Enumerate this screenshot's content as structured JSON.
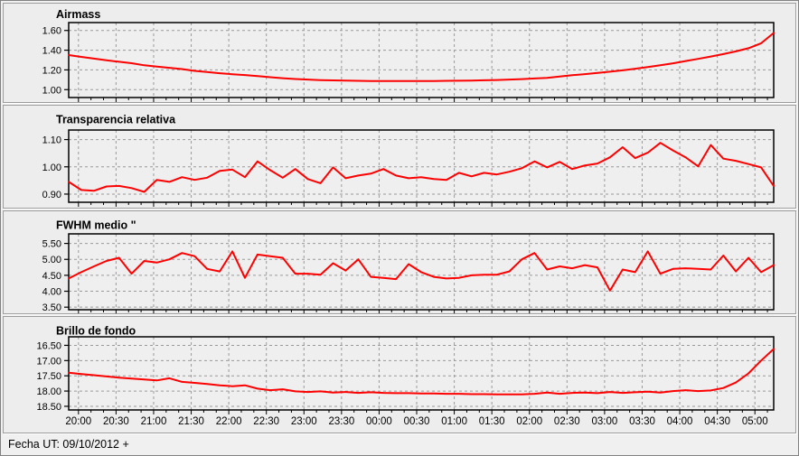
{
  "page": {
    "footer_text": "Fecha UT: 09/10/2012 +"
  },
  "colors": {
    "series": "#ff0000",
    "title_text": "#ff0000",
    "grid": "#9a9a9a",
    "axis": "#000000",
    "tick_text": "#000000",
    "page_bg": "#f0f0f0",
    "panel_bg": "#ededed",
    "plot_bg": "#efefef",
    "panel_border": "#9c9c9c"
  },
  "x_axis": {
    "xlim": [
      19.87,
      29.25
    ],
    "major_tick_labels": [
      "20:00",
      "20:30",
      "21:00",
      "21:30",
      "22:00",
      "22:30",
      "23:00",
      "23:30",
      "00:00",
      "00:30",
      "01:00",
      "01:30",
      "02:00",
      "02:30",
      "03:00",
      "03:30",
      "04:00",
      "04:30",
      "05:00"
    ],
    "minor_tick_minutes": 10
  },
  "chart_data": [
    {
      "type": "line",
      "title": "Airmass",
      "yticks": [
        1.0,
        1.2,
        1.4,
        1.6
      ],
      "ylim": [
        0.92,
        1.68
      ],
      "grid": true,
      "legend": false,
      "values": [
        1.35,
        1.332,
        1.315,
        1.298,
        1.283,
        1.268,
        1.247,
        1.234,
        1.221,
        1.208,
        1.19,
        1.178,
        1.166,
        1.156,
        1.148,
        1.138,
        1.126,
        1.116,
        1.108,
        1.102,
        1.097,
        1.094,
        1.091,
        1.089,
        1.088,
        1.088,
        1.087,
        1.087,
        1.087,
        1.088,
        1.089,
        1.09,
        1.092,
        1.095,
        1.098,
        1.102,
        1.107,
        1.113,
        1.12,
        1.133,
        1.146,
        1.157,
        1.17,
        1.182,
        1.196,
        1.212,
        1.229,
        1.247,
        1.267,
        1.29,
        1.312,
        1.336,
        1.36,
        1.388,
        1.42,
        1.47,
        1.575
      ]
    },
    {
      "type": "line",
      "title": "Transparencia relativa",
      "yticks": [
        0.9,
        1.0,
        1.1
      ],
      "ylim": [
        0.87,
        1.135
      ],
      "grid": true,
      "legend": false,
      "values": [
        0.945,
        0.915,
        0.912,
        0.928,
        0.93,
        0.922,
        0.908,
        0.952,
        0.945,
        0.962,
        0.952,
        0.96,
        0.985,
        0.99,
        0.962,
        1.02,
        0.988,
        0.96,
        0.992,
        0.955,
        0.94,
        0.998,
        0.958,
        0.968,
        0.975,
        0.992,
        0.968,
        0.958,
        0.962,
        0.955,
        0.952,
        0.978,
        0.965,
        0.978,
        0.972,
        0.982,
        0.995,
        1.02,
        0.998,
        1.018,
        0.992,
        1.005,
        1.012,
        1.035,
        1.072,
        1.032,
        1.052,
        1.088,
        1.06,
        1.035,
        1.002,
        1.08,
        1.03,
        1.022,
        1.01,
        0.998,
        0.93
      ]
    },
    {
      "type": "line",
      "title": "FWHM medio \"",
      "yticks": [
        3.5,
        4.0,
        4.5,
        5.0,
        5.5
      ],
      "ylim": [
        3.42,
        5.8
      ],
      "grid": true,
      "legend": false,
      "values": [
        4.4,
        4.6,
        4.78,
        4.95,
        5.05,
        4.55,
        4.95,
        4.9,
        5.0,
        5.2,
        5.1,
        4.7,
        4.62,
        5.25,
        4.42,
        5.15,
        5.1,
        5.05,
        4.55,
        4.55,
        4.52,
        4.88,
        4.65,
        5.0,
        4.45,
        4.42,
        4.38,
        4.85,
        4.6,
        4.45,
        4.4,
        4.42,
        4.5,
        4.52,
        4.52,
        4.62,
        5.0,
        5.2,
        4.68,
        4.78,
        4.72,
        4.82,
        4.75,
        4.02,
        4.68,
        4.6,
        5.25,
        4.55,
        4.7,
        4.72,
        4.7,
        4.68,
        5.12,
        4.62,
        5.05,
        4.6,
        4.82
      ]
    },
    {
      "type": "line",
      "title": "Brillo de fondo",
      "yticks": [
        16.5,
        17.0,
        17.5,
        18.0,
        18.5
      ],
      "ylim": [
        18.62,
        16.22
      ],
      "y_inverted": true,
      "show_x_labels": true,
      "grid": true,
      "legend": false,
      "values": [
        17.4,
        17.44,
        17.48,
        17.52,
        17.56,
        17.59,
        17.62,
        17.65,
        17.58,
        17.7,
        17.73,
        17.77,
        17.81,
        17.84,
        17.81,
        17.92,
        17.97,
        17.94,
        18.01,
        18.03,
        18.01,
        18.05,
        18.03,
        18.06,
        18.04,
        18.06,
        18.07,
        18.07,
        18.08,
        18.08,
        18.09,
        18.09,
        18.1,
        18.1,
        18.11,
        18.11,
        18.11,
        18.09,
        18.05,
        18.09,
        18.06,
        18.05,
        18.07,
        18.03,
        18.06,
        18.04,
        18.02,
        18.05,
        18.0,
        17.97,
        18.0,
        17.98,
        17.9,
        17.72,
        17.42,
        17.0,
        16.62
      ]
    }
  ]
}
